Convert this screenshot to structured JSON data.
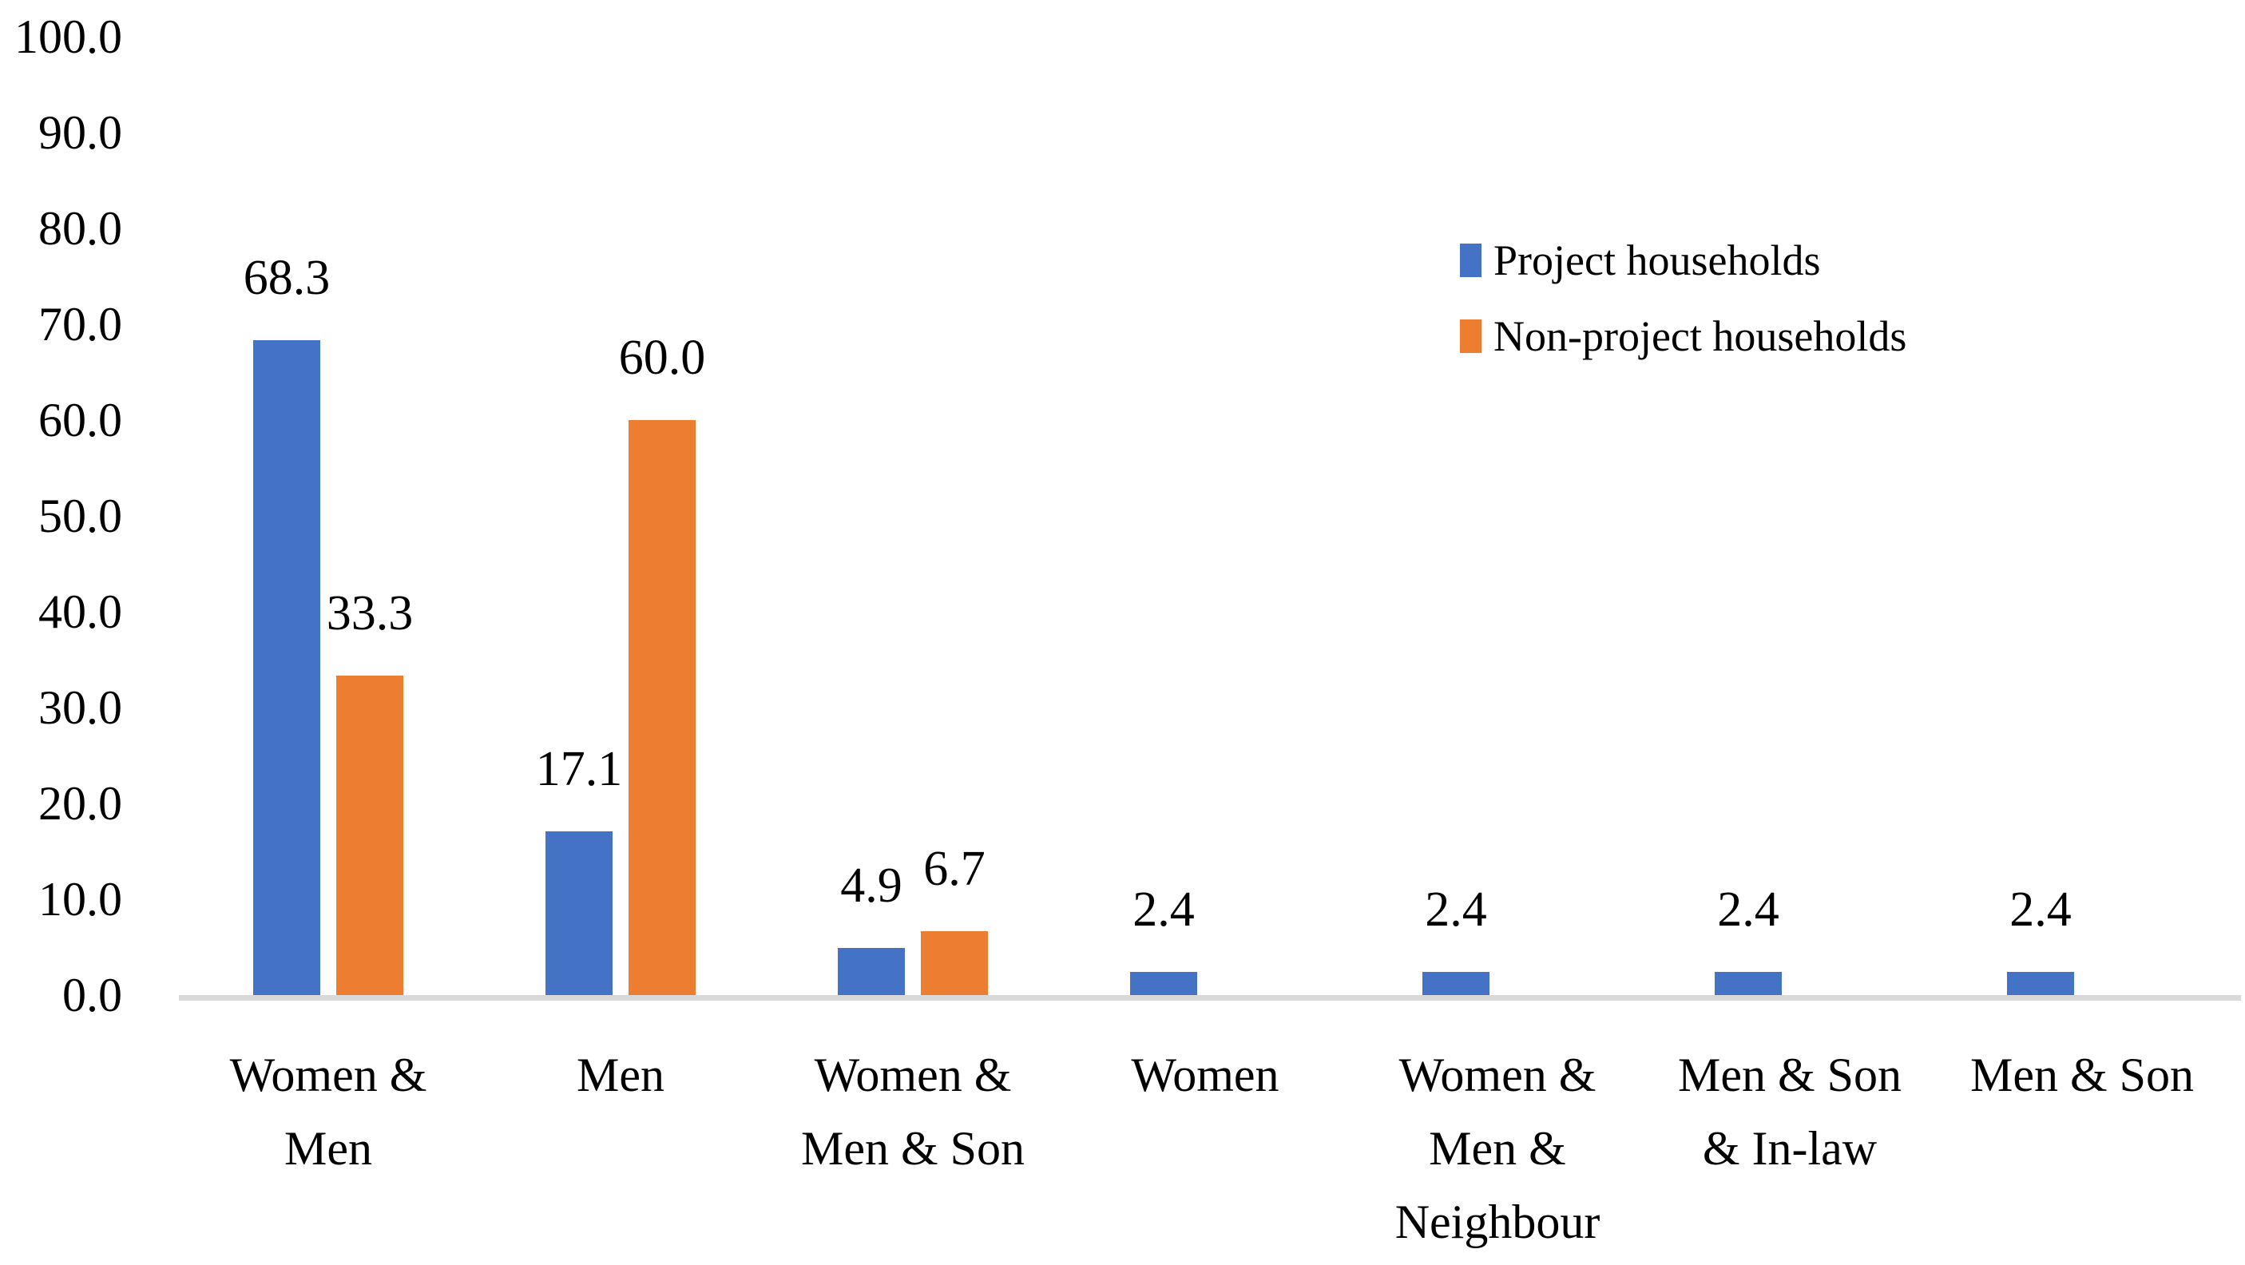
{
  "chart_data": {
    "type": "bar",
    "title": "",
    "xlabel": "",
    "ylabel": "",
    "categories": [
      "Women & Men",
      "Men",
      "Women & Men & Son",
      "Women",
      "Women & Men & Neighbour",
      "Men & Son & In-law",
      "Men & Son"
    ],
    "category_display_lines": [
      [
        "Women &",
        "Men"
      ],
      [
        "Men"
      ],
      [
        "Women &",
        "Men & Son"
      ],
      [
        "Women"
      ],
      [
        "Women &",
        "Men &",
        "Neighbour"
      ],
      [
        "Men & Son",
        "& In-law"
      ],
      [
        "Men & Son"
      ]
    ],
    "series": [
      {
        "name": "Project households",
        "color": "#4472C4",
        "values": [
          68.3,
          17.1,
          4.9,
          2.4,
          2.4,
          2.4,
          2.4
        ],
        "labels": [
          "68.3",
          "17.1",
          "4.9",
          "2.4",
          "2.4",
          "2.4",
          "2.4"
        ]
      },
      {
        "name": "Non-project households",
        "color": "#ED7D31",
        "values": [
          33.3,
          60.0,
          6.7,
          null,
          null,
          null,
          null
        ],
        "labels": [
          "33.3",
          "60.0",
          "6.7",
          null,
          null,
          null,
          null
        ]
      }
    ],
    "y_ticks": [
      "100.0",
      "90.0",
      "80.0",
      "70.0",
      "60.0",
      "50.0",
      "40.0",
      "30.0",
      "20.0",
      "10.0",
      "0.0"
    ],
    "ylim": [
      0,
      100
    ],
    "grid": false,
    "legend_position": "top-right",
    "axis_line_color": "#D9D9D9",
    "text_color": "#000000",
    "background_color": "#FFFFFF"
  }
}
